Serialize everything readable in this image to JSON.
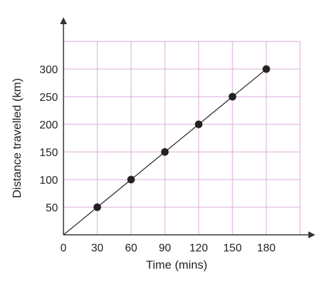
{
  "colors": {
    "grid": "#d8a8d8",
    "axis": "#333333",
    "line": "#222222",
    "marker": "#222222",
    "frame": "#eeeeee"
  },
  "chart_data": {
    "type": "line",
    "title": "",
    "xlabel": "Time (mins)",
    "ylabel": "Distance travelled (km)",
    "xlim": [
      0,
      210
    ],
    "ylim": [
      0,
      350
    ],
    "x_ticks": [
      0,
      30,
      60,
      90,
      120,
      150,
      180
    ],
    "y_ticks": [
      50,
      100,
      150,
      200,
      250,
      300
    ],
    "x_tick_labels": [
      "0",
      "30",
      "60",
      "90",
      "120",
      "150",
      "180"
    ],
    "y_tick_labels": [
      "50",
      "100",
      "150",
      "200",
      "250",
      "300"
    ],
    "grid": true,
    "series": [
      {
        "x": [
          0,
          30,
          60,
          90,
          120,
          150,
          180
        ],
        "y": [
          0,
          50,
          100,
          150,
          200,
          250,
          300
        ],
        "markers": [
          false,
          true,
          true,
          true,
          true,
          true,
          true
        ]
      }
    ]
  }
}
